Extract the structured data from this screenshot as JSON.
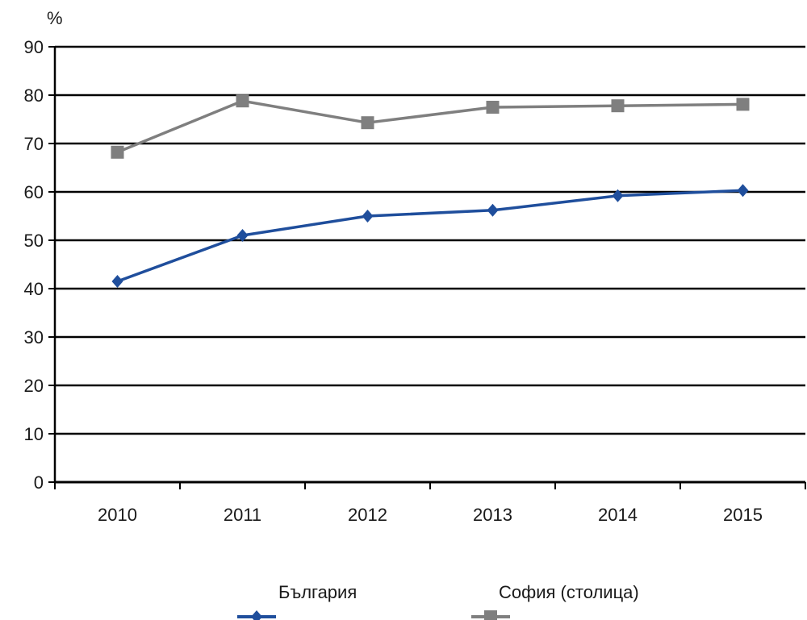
{
  "chart_data": {
    "type": "line",
    "unit_label": "%",
    "x": [
      "2010",
      "2011",
      "2012",
      "2013",
      "2014",
      "2015"
    ],
    "ylim": [
      0,
      90
    ],
    "yticks": [
      0,
      10,
      20,
      30,
      40,
      50,
      60,
      70,
      80,
      90
    ],
    "grid": true,
    "legend_position": "bottom",
    "series": [
      {
        "name": "България",
        "values": [
          41.5,
          51,
          55,
          56.2,
          59.2,
          60.3
        ],
        "color": "#1f4e9c",
        "marker": "diamond"
      },
      {
        "name": "София (столица)",
        "values": [
          68.2,
          78.8,
          74.3,
          77.5,
          77.8,
          78.1
        ],
        "color": "#7f7f7f",
        "marker": "square"
      }
    ]
  }
}
